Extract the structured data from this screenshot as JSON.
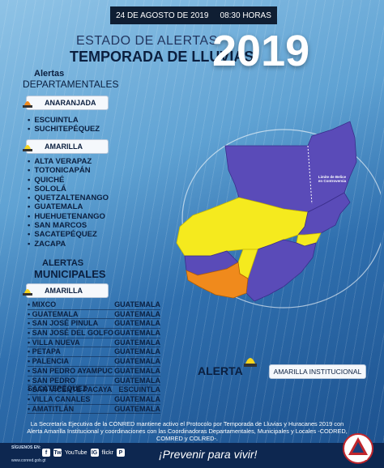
{
  "header": {
    "date": "24 DE AGOSTO DE 2019",
    "time": "08:30 HORAS"
  },
  "title": {
    "estado": "ESTADO DE ALERTAS",
    "temporada": "TEMPORADA DE LLUVIAS",
    "year": "2019"
  },
  "departamentales": {
    "title_line1": "Alertas",
    "title_line2": "DEPARTAMENTALES",
    "anaranjada_label": "ANARANJADA",
    "anaranjada_items": [
      "ESCUINTLA",
      "SUCHITEPÉQUEZ"
    ],
    "amarilla_label": "AMARILLA",
    "amarilla_items": [
      "ALTA VERAPAZ",
      "TOTONICAPÁN",
      "QUICHÉ",
      "SOLOLÁ",
      "QUETZALTENANGO",
      "GUATEMALA",
      "HUEHUETENANGO",
      "SAN MARCOS",
      "SACATEPÉQUEZ",
      "ZACAPA"
    ]
  },
  "municipales": {
    "title_line1": "ALERTAS",
    "title_line2": "MUNICIPALES",
    "amarilla_label": "AMARILLA",
    "rows": [
      {
        "municipio": "MIXCO",
        "departamento": "GUATEMALA"
      },
      {
        "municipio": "GUATEMALA",
        "departamento": "GUATEMALA"
      },
      {
        "municipio": "SAN JOSÉ PINULA",
        "departamento": "GUATEMALA"
      },
      {
        "municipio": "SAN JOSÉ DEL GOLFO",
        "departamento": "GUATEMALA"
      },
      {
        "municipio": "VILLA NUEVA",
        "departamento": "GUATEMALA"
      },
      {
        "municipio": "PETAPA",
        "departamento": "GUATEMALA"
      },
      {
        "municipio": "PALENCIA",
        "departamento": "GUATEMALA"
      },
      {
        "municipio": "SAN PEDRO AYAMPUC",
        "departamento": "GUATEMALA"
      },
      {
        "municipio": "SAN PEDRO SACATEPÉQUEZ",
        "departamento": "GUATEMALA"
      },
      {
        "municipio": "SAN VICENTE PACAYA",
        "departamento": "ESCUINTLA"
      },
      {
        "municipio": "VILLA CANALES",
        "departamento": "GUATEMALA"
      },
      {
        "municipio": "AMATITLÁN",
        "departamento": "GUATEMALA"
      }
    ]
  },
  "map": {
    "inset_label": "Limite de Belice en Controversia",
    "colors": {
      "purple": "#5a4bb8",
      "yellow": "#f5ea1e",
      "orange": "#f08a1c"
    }
  },
  "institutional": {
    "alerta_word": "ALERTA",
    "label": "AMARILLA INSTITUCIONAL"
  },
  "footer": {
    "text": "La Secretaría Ejecutiva de la CONRED mantiene activo el Protocolo por Temporada de Lluvias y Huracanes 2019 con Alerta Amarilla Institucional y coordinaciones con las Coordinadoras Departamentales, Municipales y Locales -CODRED, COMRED y COLRED-.",
    "siguenos": "SÍGUENOS EN:",
    "web": "www.conred.gob.gt",
    "social": [
      "f",
      "Tw",
      "YouTube",
      "IG",
      "flickr",
      "P"
    ],
    "slogan": "¡Prevenir para vivir!",
    "logo_text": "CONRED"
  }
}
